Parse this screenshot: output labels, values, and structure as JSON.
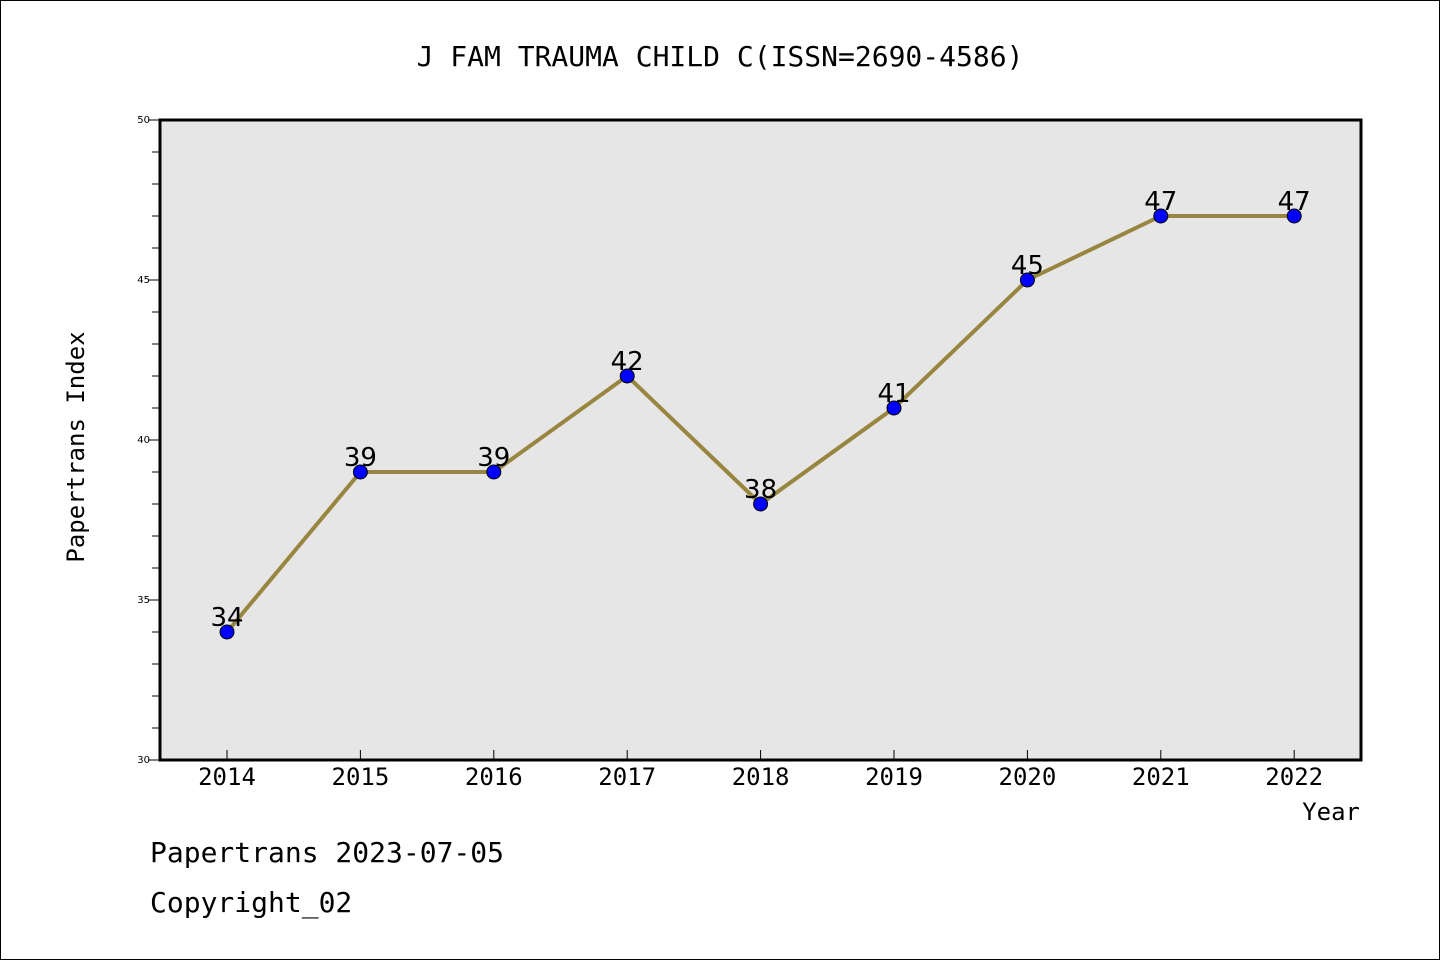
{
  "chart_data": {
    "type": "line",
    "title": "J FAM TRAUMA CHILD C(ISSN=2690-4586)",
    "xlabel": "Year",
    "ylabel": "Papertrans Index",
    "x": [
      "2014",
      "2015",
      "2016",
      "2017",
      "2018",
      "2019",
      "2020",
      "2021",
      "2022"
    ],
    "series": [
      {
        "values": [
          34,
          39,
          39,
          42,
          38,
          41,
          45,
          47,
          47
        ]
      }
    ],
    "ylim": [
      30,
      50
    ],
    "yticks": [
      30,
      35,
      40,
      45,
      50
    ],
    "grid": false,
    "colors": {
      "line": "#988640",
      "marker": "#0000ff",
      "plot_bg": "#e6e6e6"
    }
  },
  "footer": {
    "line1": "Papertrans 2023-07-05",
    "line2": "Copyright_02"
  }
}
